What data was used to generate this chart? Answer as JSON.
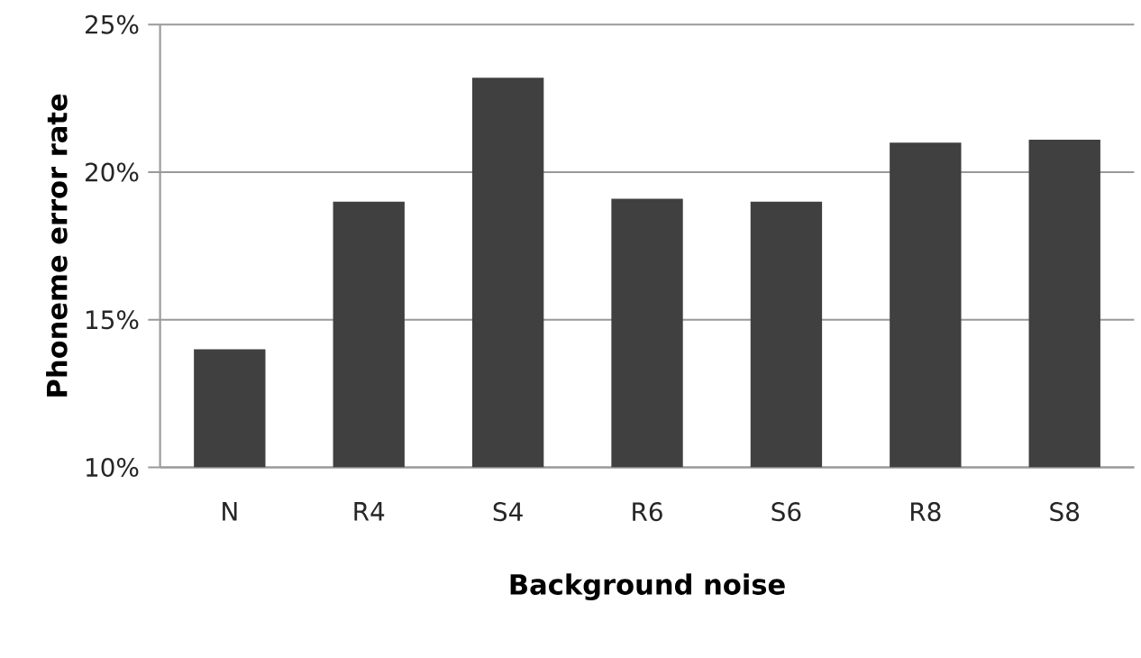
{
  "chart_data": {
    "type": "bar",
    "xlabel": "Background noise",
    "ylabel": "Phoneme error rate",
    "categories": [
      "N",
      "R4",
      "S4",
      "R6",
      "S6",
      "R8",
      "S8"
    ],
    "values": [
      14.0,
      19.0,
      23.2,
      19.1,
      19.0,
      21.0,
      21.1
    ],
    "color": "#404040",
    "ylim": [
      10,
      25
    ],
    "yticks": [
      {
        "value": 10,
        "label": "10%"
      },
      {
        "value": 15,
        "label": "15%"
      },
      {
        "value": 20,
        "label": "20%"
      },
      {
        "value": 25,
        "label": "25%"
      }
    ],
    "grid": "y"
  }
}
